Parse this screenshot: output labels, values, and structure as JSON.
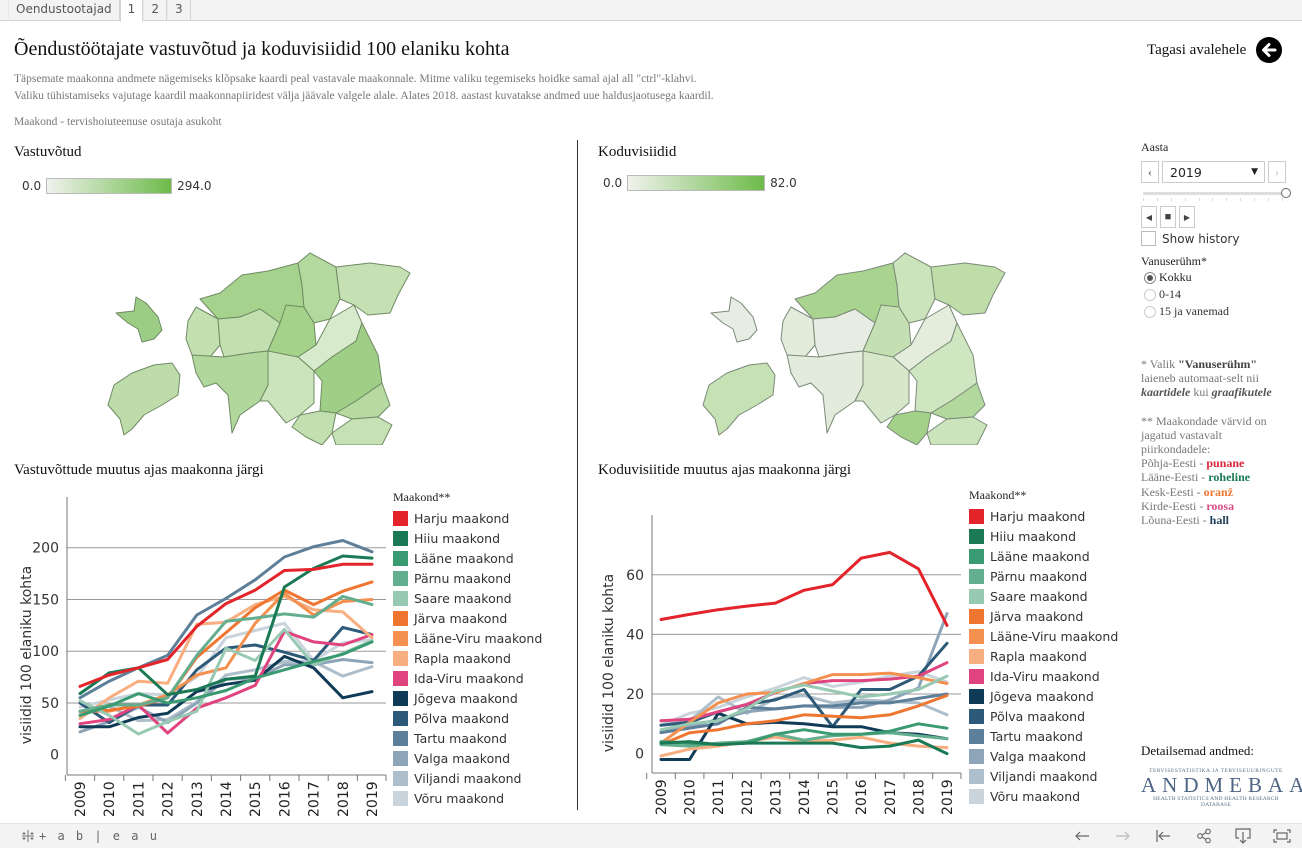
{
  "tabs": [
    {
      "label": "Oendustootajad",
      "active": false
    },
    {
      "label": "1",
      "active": true
    },
    {
      "label": "2",
      "active": false
    },
    {
      "label": "3",
      "active": false
    }
  ],
  "header": {
    "title": "Õendustöötajate vastuvõtud ja koduvisiidid 100 elaniku kohta",
    "description_line1": "Täpsemate maakonna andmete nägemiseks klõpsake kaardi peal vastavale maakonnale. Mitme valiku tegemiseks hoidke samal ajal all \"ctrl\"-klahvi.",
    "description_line2": "Valiku tühistamiseks vajutage kaardil maakonnapiiridest välja jäävale valgele alale. Alates 2018. aastast kuvatakse andmed uue haldusjaotusega kaardil.",
    "subnote": "Maakond - tervishoiuteenuse osutaja asukoht",
    "back_label": "Tagasi avalehele",
    "back_icon": "arrow-left-circle-icon"
  },
  "maps": {
    "left": {
      "title": "Vastuvõtud",
      "min_label": "0.0",
      "max_label": "294.0",
      "color_low": "#f0f2ec",
      "color_high": "#6dbb4a"
    },
    "right": {
      "title": "Koduvisiidid",
      "min_label": "0.0",
      "max_label": "82.0",
      "color_low": "#f0f2ec",
      "color_high": "#6dbb4a"
    }
  },
  "controls": {
    "year_label": "Aasta",
    "year_value": "2019",
    "year_position": 1.0,
    "show_history_label": "Show history",
    "show_history_checked": false,
    "age_group_label": "Vanuserühm*",
    "age_options": [
      {
        "label": "Kokku",
        "selected": true
      },
      {
        "label": "0-14",
        "selected": false
      },
      {
        "label": "15 ja vanemad",
        "selected": false
      }
    ]
  },
  "notes": {
    "n1_pre": "* Valik ",
    "n1_bold": "\"Vanuserühm\"",
    "n1_mid": " laieneb automaat-selt nii ",
    "n1_it1": "kaartidele",
    "n1_mid2": " kui ",
    "n1_it2": "graafikutele",
    "n2": "** Maakondade värvid on jagatud vastavalt piirkondadele:",
    "regions": [
      {
        "name": "Põhja-Eesti - ",
        "color_word": "punane",
        "color": "#d7263d"
      },
      {
        "name": "Lääne-Eesti - ",
        "color_word": "roheline",
        "color": "#1b7a55"
      },
      {
        "name": "Kesk-Eesti - ",
        "color_word": "oranž",
        "color": "#ee7733"
      },
      {
        "name": "Kirde-Eesti - ",
        "color_word": "roosa",
        "color": "#d94a86"
      },
      {
        "name": "Lõuna-Eesti - ",
        "color_word": "hall",
        "color": "#1c3c57"
      }
    ]
  },
  "detail": {
    "label": "Detailsemad andmed:",
    "logo_top": "TERVISESTATISTIKA JA TERVISEUURINGUTE",
    "logo_main": "ANDMEBAAS",
    "logo_bottom": "HEALTH STATISTICS AND HEALTH RESEARCH DATABASE"
  },
  "footer": {
    "brand": "+ a b | e a u",
    "tools": [
      "undo-icon",
      "redo-icon",
      "revert-icon",
      "share-icon",
      "download-icon",
      "fullscreen-icon"
    ]
  },
  "legend_title": "Maakond**",
  "chart_data": [
    {
      "type": "line",
      "title": "Vastuvõttude muutus ajas maakonna järgi",
      "xlabel": "",
      "ylabel": "visiidid 100 elaniku kohta",
      "x": [
        2009,
        2010,
        2011,
        2012,
        2013,
        2014,
        2015,
        2016,
        2017,
        2018,
        2019
      ],
      "ylim": [
        -8,
        220
      ],
      "yticks": [
        0,
        50,
        100,
        150,
        200
      ],
      "grid": true,
      "legend_position": "right",
      "series": [
        {
          "name": "Harju maakond",
          "color": "#e3242b",
          "values": [
            66,
            77,
            84,
            92,
            124,
            146,
            159,
            178,
            179,
            184,
            184
          ]
        },
        {
          "name": "Hiiu maakond",
          "color": "#1b7a55",
          "values": [
            59,
            79,
            84,
            58,
            63,
            73,
            76,
            162,
            180,
            192,
            190
          ]
        },
        {
          "name": "Lääne maakond",
          "color": "#3a9a72",
          "values": [
            38,
            47,
            59,
            50,
            55,
            62,
            74,
            82,
            90,
            97,
            109
          ]
        },
        {
          "name": "Pärnu maakond",
          "color": "#63ae8e",
          "values": [
            42,
            48,
            48,
            55,
            96,
            129,
            132,
            136,
            133,
            153,
            145
          ]
        },
        {
          "name": "Saare maakond",
          "color": "#98c9b2",
          "values": [
            52,
            38,
            20,
            32,
            42,
            103,
            91,
            121,
            87,
            98,
            110
          ]
        },
        {
          "name": "Järva maakond",
          "color": "#ef7630",
          "values": [
            42,
            43,
            47,
            55,
            94,
            118,
            142,
            159,
            145,
            158,
            167
          ]
        },
        {
          "name": "Lääne-Viru maakond",
          "color": "#f49150",
          "values": [
            42,
            42,
            48,
            58,
            77,
            84,
            127,
            156,
            135,
            148,
            150
          ]
        },
        {
          "name": "Rapla maakond",
          "color": "#f7ae80",
          "values": [
            35,
            55,
            71,
            69,
            126,
            128,
            145,
            153,
            140,
            138,
            113
          ]
        },
        {
          "name": "Ida-Viru maakond",
          "color": "#e0447e",
          "values": [
            30,
            34,
            48,
            21,
            45,
            55,
            67,
            119,
            109,
            106,
            116
          ]
        },
        {
          "name": "Jõgeva maakond",
          "color": "#0f3b57",
          "values": [
            27,
            27,
            36,
            40,
            61,
            68,
            72,
            95,
            84,
            55,
            61
          ]
        },
        {
          "name": "Põlva maakond",
          "color": "#2d5a78",
          "values": [
            50,
            31,
            48,
            48,
            82,
            103,
            106,
            99,
            91,
            123,
            116
          ]
        },
        {
          "name": "Tartu maakond",
          "color": "#5e7f99",
          "values": [
            55,
            71,
            84,
            96,
            135,
            151,
            169,
            191,
            201,
            207,
            196
          ]
        },
        {
          "name": "Valga maakond",
          "color": "#8ea4b8",
          "values": [
            22,
            32,
            46,
            31,
            50,
            73,
            74,
            87,
            87,
            92,
            89
          ]
        },
        {
          "name": "Viljandi maakond",
          "color": "#aebfcb",
          "values": [
            41,
            47,
            33,
            34,
            51,
            77,
            82,
            90,
            90,
            76,
            85
          ]
        },
        {
          "name": "Võru maakond",
          "color": "#c9d4dd",
          "values": [
            46,
            53,
            59,
            58,
            75,
            113,
            120,
            127,
            91,
            108,
            111
          ]
        }
      ]
    },
    {
      "type": "line",
      "title": "Koduvisiitide muutus ajas maakonna järgi",
      "xlabel": "",
      "ylabel": "visiidid 100 elaniku kohta",
      "x": [
        2009,
        2010,
        2011,
        2012,
        2013,
        2014,
        2015,
        2016,
        2017,
        2018,
        2019
      ],
      "ylim": [
        -2.5,
        70
      ],
      "yticks": [
        0,
        20,
        40,
        60
      ],
      "grid": true,
      "legend_position": "right",
      "series": [
        {
          "name": "Harju maakond",
          "color": "#e3242b",
          "values": [
            45,
            46.7,
            48.3,
            49.5,
            50.5,
            54.8,
            56.7,
            65.6,
            67.5,
            62,
            43
          ]
        },
        {
          "name": "Hiiu maakond",
          "color": "#1b7a55",
          "values": [
            3.5,
            4,
            3,
            3.5,
            3.5,
            3.5,
            3.5,
            2,
            2.5,
            4.5,
            0
          ]
        },
        {
          "name": "Lääne maakond",
          "color": "#3a9a72",
          "values": [
            4,
            3.5,
            3,
            3.5,
            6.5,
            8,
            6.5,
            6.5,
            7.5,
            10,
            8.5
          ]
        },
        {
          "name": "Pärnu maakond",
          "color": "#63ae8e",
          "values": [
            3,
            2.5,
            3.5,
            4,
            6.5,
            4.5,
            6,
            6.5,
            7,
            6,
            5
          ]
        },
        {
          "name": "Saare maakond",
          "color": "#98c9b2",
          "values": [
            8,
            10,
            11,
            15,
            21,
            23,
            21,
            19,
            20,
            21.5,
            26
          ]
        },
        {
          "name": "Järva maakond",
          "color": "#ef7630",
          "values": [
            3,
            7,
            8,
            10,
            11,
            13,
            12.5,
            12,
            13,
            16,
            19.5
          ]
        },
        {
          "name": "Lääne-Viru maakond",
          "color": "#f49150",
          "values": [
            3.5,
            10.5,
            17,
            20,
            20.5,
            23.5,
            26.5,
            26.5,
            27,
            25.5,
            23.5
          ]
        },
        {
          "name": "Rapla maakond",
          "color": "#f7ae80",
          "values": [
            -0.8,
            1.5,
            2.5,
            4,
            5.5,
            4,
            4.5,
            5.5,
            3.5,
            2.5,
            2
          ]
        },
        {
          "name": "Ida-Viru maakond",
          "color": "#e0447e",
          "values": [
            11,
            11.5,
            14,
            16.5,
            20.5,
            23.5,
            24.5,
            24.5,
            25,
            26,
            30.5
          ]
        },
        {
          "name": "Jõgeva maakond",
          "color": "#0f3b57",
          "values": [
            -2,
            -2,
            13.5,
            10,
            10.5,
            10,
            9,
            9,
            7,
            6.5,
            5
          ]
        },
        {
          "name": "Põlva maakond",
          "color": "#2d5a78",
          "values": [
            9.5,
            10.5,
            14,
            16.5,
            18,
            21.5,
            9,
            21.5,
            21.5,
            26,
            37
          ]
        },
        {
          "name": "Tartu maakond",
          "color": "#5e7f99",
          "values": [
            7,
            8.5,
            10,
            15.5,
            15,
            16,
            16,
            17,
            17,
            18.5,
            20
          ]
        },
        {
          "name": "Valga maakond",
          "color": "#8ea4b8",
          "values": [
            7.5,
            9,
            11.5,
            14,
            15,
            16,
            15.5,
            15.5,
            18,
            22,
            47
          ]
        },
        {
          "name": "Viljandi maakond",
          "color": "#aebfcb",
          "values": [
            9.5,
            11,
            19,
            13.5,
            18.5,
            19.5,
            17,
            18,
            17.5,
            17,
            13
          ]
        },
        {
          "name": "Võru maakond",
          "color": "#c9d4dd",
          "values": [
            9.5,
            13.5,
            15.5,
            19,
            22,
            25.5,
            22.5,
            24,
            26,
            27.5,
            24
          ]
        }
      ]
    }
  ]
}
